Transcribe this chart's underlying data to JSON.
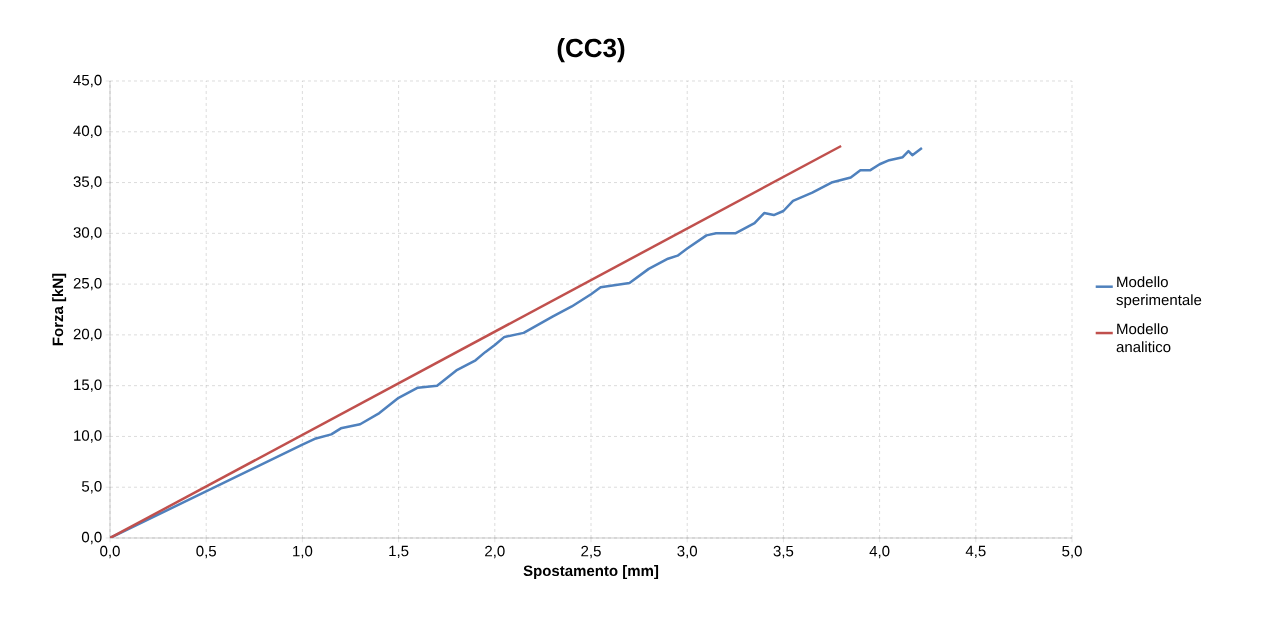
{
  "chart_data": {
    "type": "line",
    "title": "(CC3)",
    "xlabel": "Spostamento [mm]",
    "ylabel": "Forza [kN]",
    "xlim": [
      0,
      5
    ],
    "ylim": [
      0,
      45
    ],
    "xticks": [
      {
        "value": 0,
        "label": "0,0"
      },
      {
        "value": 0.5,
        "label": "0,5"
      },
      {
        "value": 1,
        "label": "1,0"
      },
      {
        "value": 1.5,
        "label": "1,5"
      },
      {
        "value": 2,
        "label": "2,0"
      },
      {
        "value": 2.5,
        "label": "2,5"
      },
      {
        "value": 3,
        "label": "3,0"
      },
      {
        "value": 3.5,
        "label": "3,5"
      },
      {
        "value": 4,
        "label": "4,0"
      },
      {
        "value": 4.5,
        "label": "4,5"
      },
      {
        "value": 5,
        "label": "5,0"
      }
    ],
    "yticks": [
      {
        "value": 0,
        "label": "0,0"
      },
      {
        "value": 5,
        "label": "5,0"
      },
      {
        "value": 10,
        "label": "10,0"
      },
      {
        "value": 15,
        "label": "15,0"
      },
      {
        "value": 20,
        "label": "20,0"
      },
      {
        "value": 25,
        "label": "25,0"
      },
      {
        "value": 30,
        "label": "30,0"
      },
      {
        "value": 35,
        "label": "35,0"
      },
      {
        "value": 40,
        "label": "40,0"
      },
      {
        "value": 45,
        "label": "45,0"
      }
    ],
    "grid": true,
    "legend": "right",
    "marker": "none",
    "line_style": "solid",
    "series": [
      {
        "name": "Modello sperimentale",
        "color": "#4f81bd",
        "x": [
          0,
          1.0,
          1.07,
          1.15,
          1.2,
          1.3,
          1.4,
          1.5,
          1.6,
          1.7,
          1.8,
          1.9,
          1.95,
          2.0,
          2.05,
          2.15,
          2.3,
          2.4,
          2.5,
          2.55,
          2.7,
          2.8,
          2.9,
          2.95,
          3.0,
          3.1,
          3.15,
          3.25,
          3.35,
          3.4,
          3.45,
          3.5,
          3.55,
          3.65,
          3.75,
          3.85,
          3.9,
          3.95,
          4.0,
          4.05,
          4.12,
          4.15,
          4.17,
          4.22
        ],
        "values": [
          0,
          9.2,
          9.8,
          10.2,
          10.8,
          11.2,
          12.3,
          13.8,
          14.8,
          15.0,
          16.5,
          17.5,
          18.3,
          19.0,
          19.8,
          20.2,
          21.8,
          22.8,
          24.0,
          24.7,
          25.1,
          26.5,
          27.5,
          27.8,
          28.5,
          29.8,
          30.0,
          30.0,
          31.0,
          32.0,
          31.8,
          32.2,
          33.2,
          34.0,
          35.0,
          35.5,
          36.2,
          36.2,
          36.8,
          37.2,
          37.5,
          38.1,
          37.7,
          38.4
        ]
      },
      {
        "name": "Modello analitico",
        "color": "#c0504d",
        "x": [
          0,
          3.8
        ],
        "values": [
          0,
          38.6
        ]
      }
    ]
  }
}
